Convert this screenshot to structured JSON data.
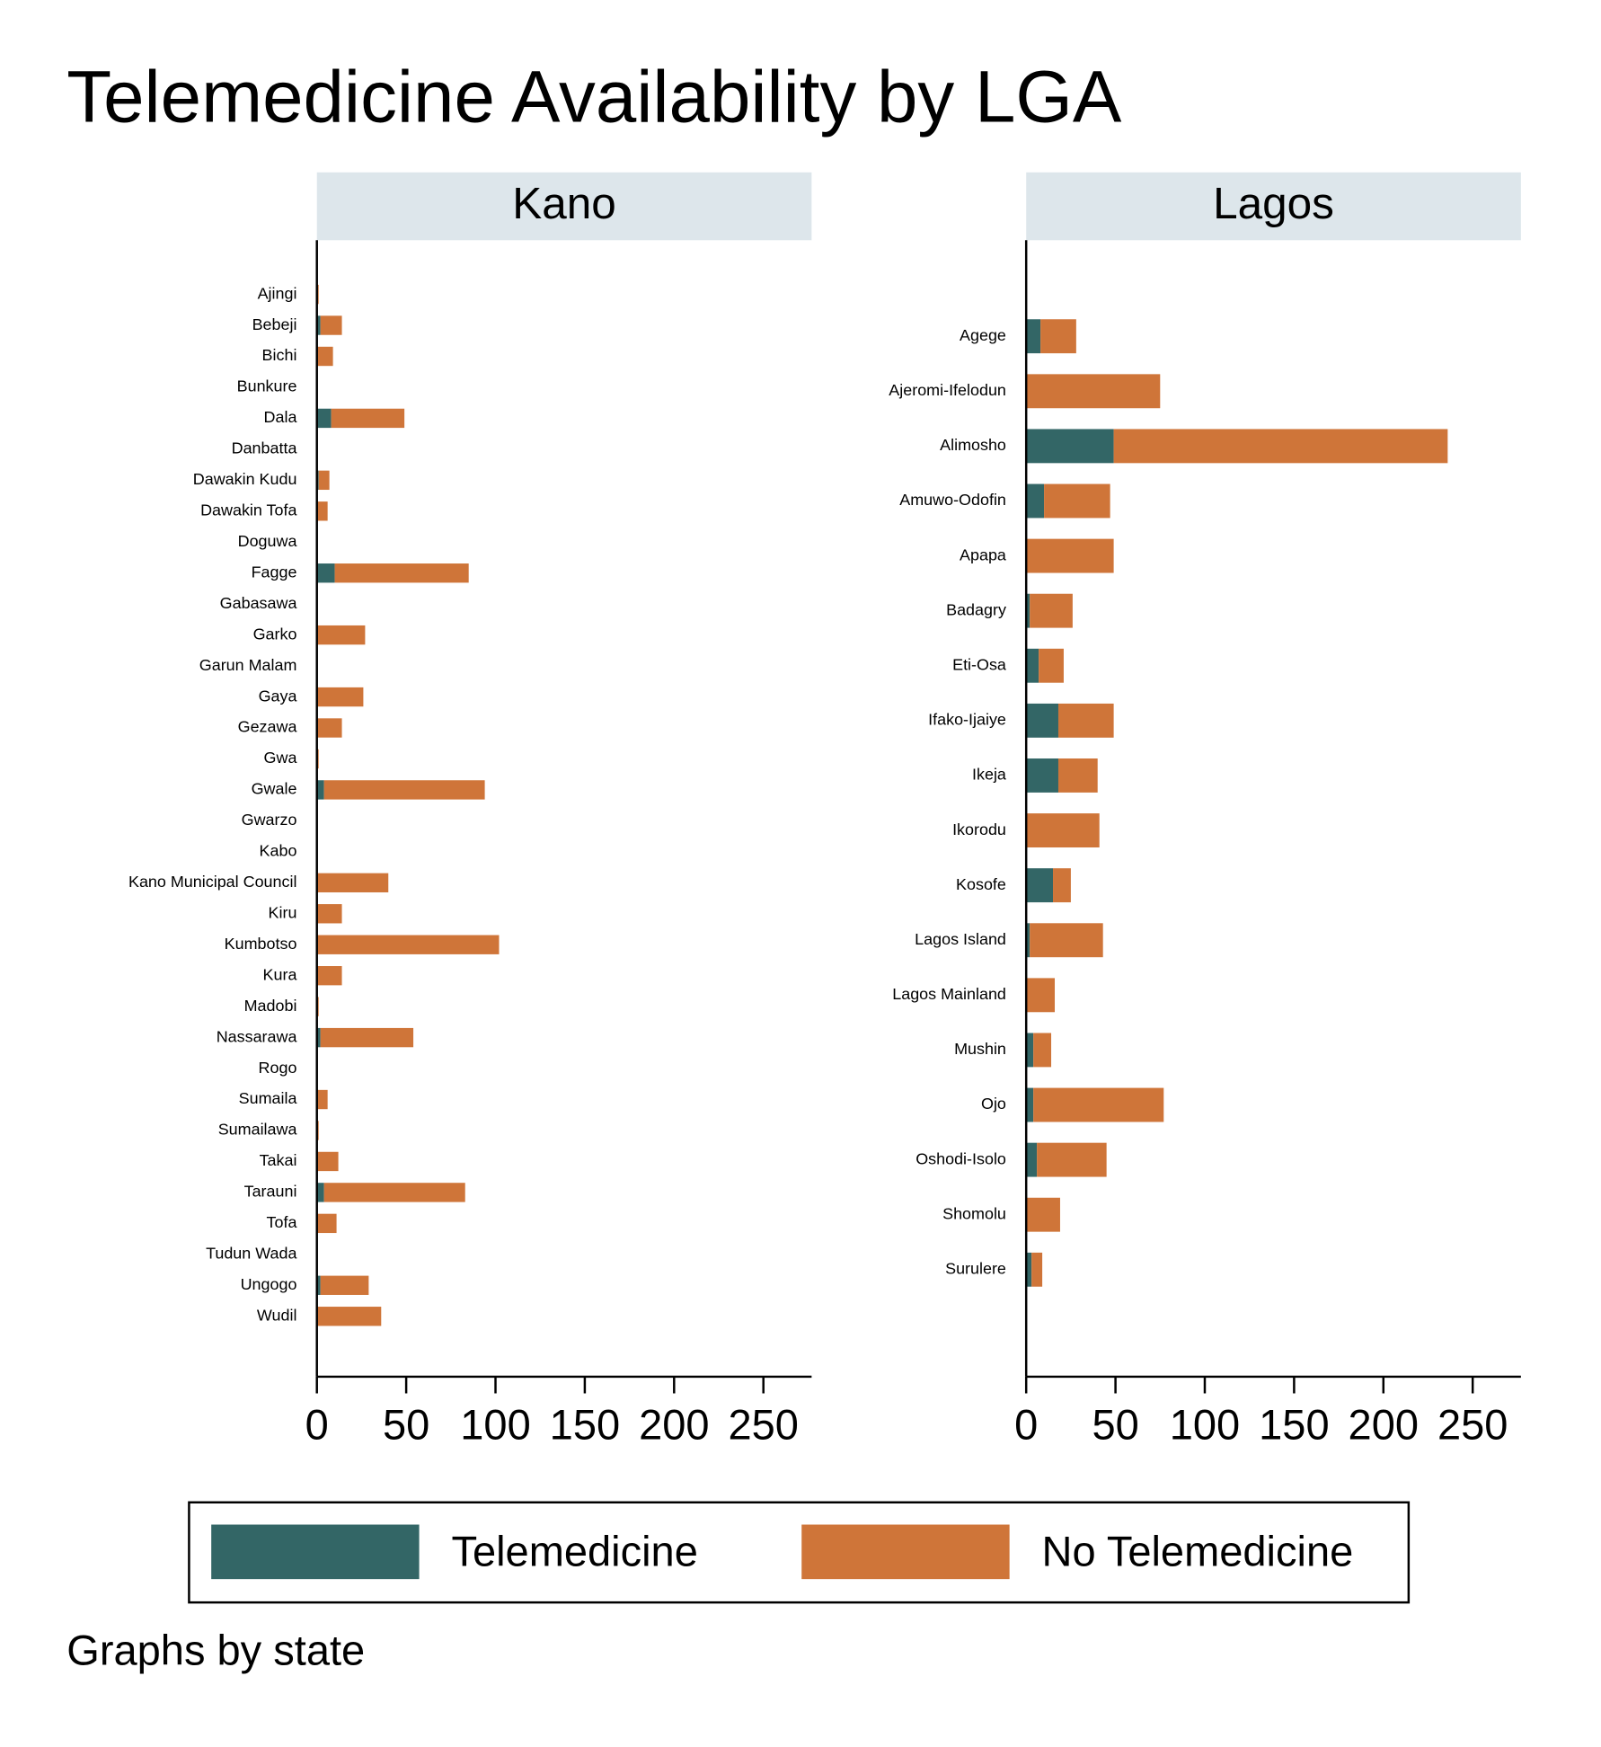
{
  "title": "Telemedicine Availability by LGA",
  "note": "Graphs by state",
  "chart_data": [
    {
      "type": "bar",
      "orientation": "horizontal",
      "stacked": true,
      "title": "Kano",
      "categories": [
        "Ajingi",
        "Bebeji",
        "Bichi",
        "Bunkure",
        "Dala",
        "Danbatta",
        "Dawakin Kudu",
        "Dawakin Tofa",
        "Doguwa",
        "Fagge",
        "Gabasawa",
        "Garko",
        "Garun Malam",
        "Gaya",
        "Gezawa",
        "Gwa",
        "Gwale",
        "Gwarzo",
        "Kabo",
        "Kano Municipal Council",
        "Kiru",
        "Kumbotso",
        "Kura",
        "Madobi",
        "Nassarawa",
        "Rogo",
        "Sumaila",
        "Sumailawa",
        "Takai",
        "Tarauni",
        "Tofa",
        "Tudun Wada",
        "Ungogo",
        "Wudil"
      ],
      "series": [
        {
          "name": "Telemedicine",
          "color": "#336666",
          "values": [
            0,
            2,
            0,
            0,
            8,
            0,
            1,
            0,
            0,
            10,
            0,
            0,
            0,
            0,
            0,
            0,
            4,
            0,
            0,
            0,
            0,
            0,
            0,
            0,
            2,
            0,
            0,
            0,
            0,
            4,
            0,
            0,
            2,
            0
          ]
        },
        {
          "name": "No Telemedicine",
          "color": "#cf7539",
          "values": [
            1,
            12,
            9,
            0,
            41,
            0,
            6,
            6,
            0,
            75,
            0,
            27,
            0,
            26,
            14,
            1,
            90,
            0,
            0,
            40,
            14,
            102,
            14,
            1,
            52,
            0,
            6,
            1,
            12,
            79,
            11,
            0,
            27,
            36
          ]
        }
      ],
      "xlim": [
        0,
        277
      ],
      "xticks": [
        0,
        50,
        100,
        150,
        200,
        250
      ]
    },
    {
      "type": "bar",
      "orientation": "horizontal",
      "stacked": true,
      "title": "Lagos",
      "categories": [
        "Agege",
        "Ajeromi-Ifelodun",
        "Alimosho",
        "Amuwo-Odofin",
        "Apapa",
        "Badagry",
        "Eti-Osa",
        "Ifako-Ijaiye",
        "Ikeja",
        "Ikorodu",
        "Kosofe",
        "Lagos Island",
        "Lagos Mainland",
        "Mushin",
        "Ojo",
        "Oshodi-Isolo",
        "Shomolu",
        "Surulere"
      ],
      "series": [
        {
          "name": "Telemedicine",
          "color": "#336666",
          "values": [
            8,
            0,
            49,
            10,
            0,
            2,
            7,
            18,
            18,
            0,
            15,
            2,
            0,
            4,
            4,
            6,
            0,
            3
          ]
        },
        {
          "name": "No Telemedicine",
          "color": "#cf7539",
          "values": [
            20,
            75,
            187,
            37,
            49,
            24,
            14,
            31,
            22,
            41,
            10,
            41,
            16,
            10,
            73,
            39,
            19,
            6
          ]
        }
      ],
      "xlim": [
        0,
        277
      ],
      "xticks": [
        0,
        50,
        100,
        150,
        200,
        250
      ]
    }
  ]
}
